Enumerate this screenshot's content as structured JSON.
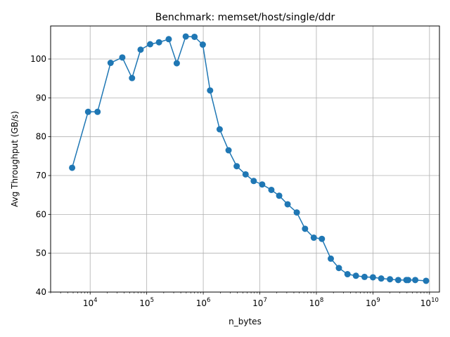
{
  "chart_data": {
    "type": "line",
    "title": "Benchmark: memset/host/single/ddr",
    "xlabel": "n_bytes",
    "ylabel": "Avg Throughput (GB/s)",
    "x_scale": "log",
    "xlim": [
      2000,
      15000000000
    ],
    "ylim": [
      40,
      108.5
    ],
    "grid": true,
    "x_tick_labels": [
      {
        "base": "10",
        "exp": "4"
      },
      {
        "base": "10",
        "exp": "5"
      },
      {
        "base": "10",
        "exp": "6"
      },
      {
        "base": "10",
        "exp": "7"
      },
      {
        "base": "10",
        "exp": "8"
      },
      {
        "base": "10",
        "exp": "9"
      },
      {
        "base": "10",
        "exp": "10"
      }
    ],
    "y_ticks": [
      40,
      50,
      60,
      70,
      80,
      90,
      100
    ],
    "series": [
      {
        "color": "#1f77b4",
        "marker": "circle",
        "x": [
          4800,
          9200,
          13500,
          23000,
          37000,
          55000,
          78000,
          115000,
          165000,
          245000,
          340000,
          490000,
          700000,
          980000,
          1320000,
          1950000,
          2800000,
          3900000,
          5600000,
          7800000,
          11000000,
          16000000,
          22000000,
          31000000,
          45000000,
          63000000,
          90000000,
          125000000,
          180000000,
          250000000,
          355000000,
          500000000,
          710000000,
          1000000000,
          1400000000,
          2000000000,
          2800000000,
          3900000000,
          4200000000,
          5600000000,
          8700000000
        ],
        "y": [
          72.0,
          86.4,
          86.4,
          99.0,
          100.4,
          95.1,
          102.4,
          103.8,
          104.3,
          105.1,
          98.9,
          105.8,
          105.7,
          103.7,
          91.9,
          81.9,
          76.5,
          72.4,
          70.3,
          68.6,
          67.7,
          66.3,
          64.8,
          62.6,
          60.5,
          56.3,
          54.0,
          53.7,
          48.6,
          46.2,
          44.6,
          44.2,
          43.9,
          43.8,
          43.5,
          43.3,
          43.1,
          43.1,
          43.1,
          43.1,
          42.9
        ]
      }
    ]
  }
}
